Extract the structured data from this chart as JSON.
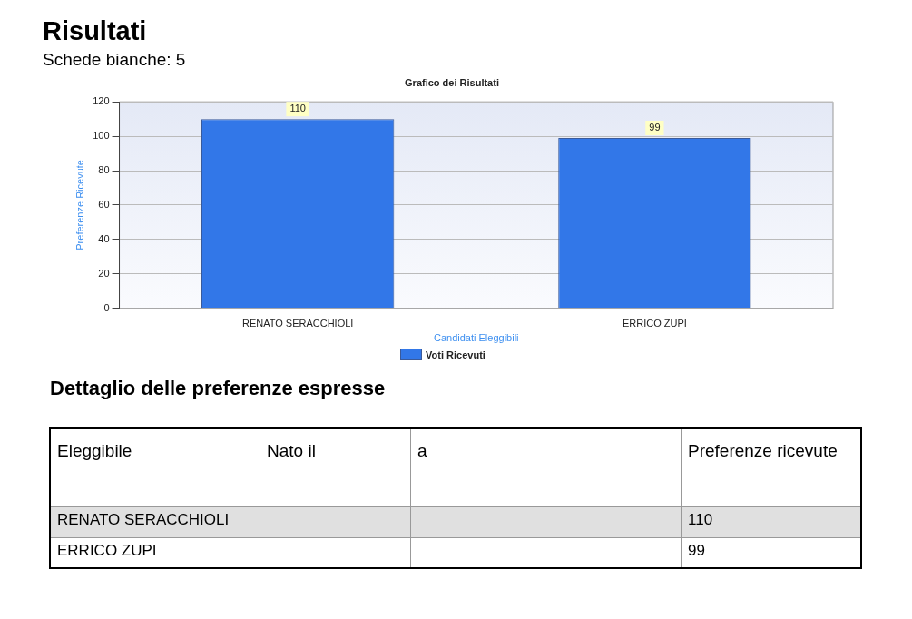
{
  "chart_data": [
    {
      "type": "other",
      "title": "Risultati",
      "subtitle": "Schede bianche: 5"
    },
    {
      "type": "bar",
      "title": "Grafico dei Risultati",
      "xlabel": "Candidati Eleggibili",
      "ylabel": "Preferenze Ricevute",
      "categories": [
        "RENATO SERACCHIOLI",
        "ERRICO ZUPI"
      ],
      "series": [
        {
          "name": "Voti Ricevuti",
          "color": "#3277e8",
          "values": [
            110,
            99
          ]
        }
      ],
      "ylim": [
        0,
        120
      ],
      "yticks": [
        0,
        20,
        40,
        60,
        80,
        100,
        120
      ],
      "grid": "y",
      "legend": "bottom",
      "data_labels": true
    },
    {
      "type": "other",
      "title": "Dettaglio delle preferenze espresse",
      "categories": [
        "Eleggibile",
        "Nato il",
        "a",
        "Preferenze ricevute"
      ],
      "y_categories": [
        "RENATO SERACCHIOLI",
        "ERRICO ZUPI"
      ],
      "cell_labels": [
        [
          null,
          null,
          null,
          "110"
        ],
        [
          null,
          null,
          null,
          "99"
        ]
      ]
    }
  ]
}
